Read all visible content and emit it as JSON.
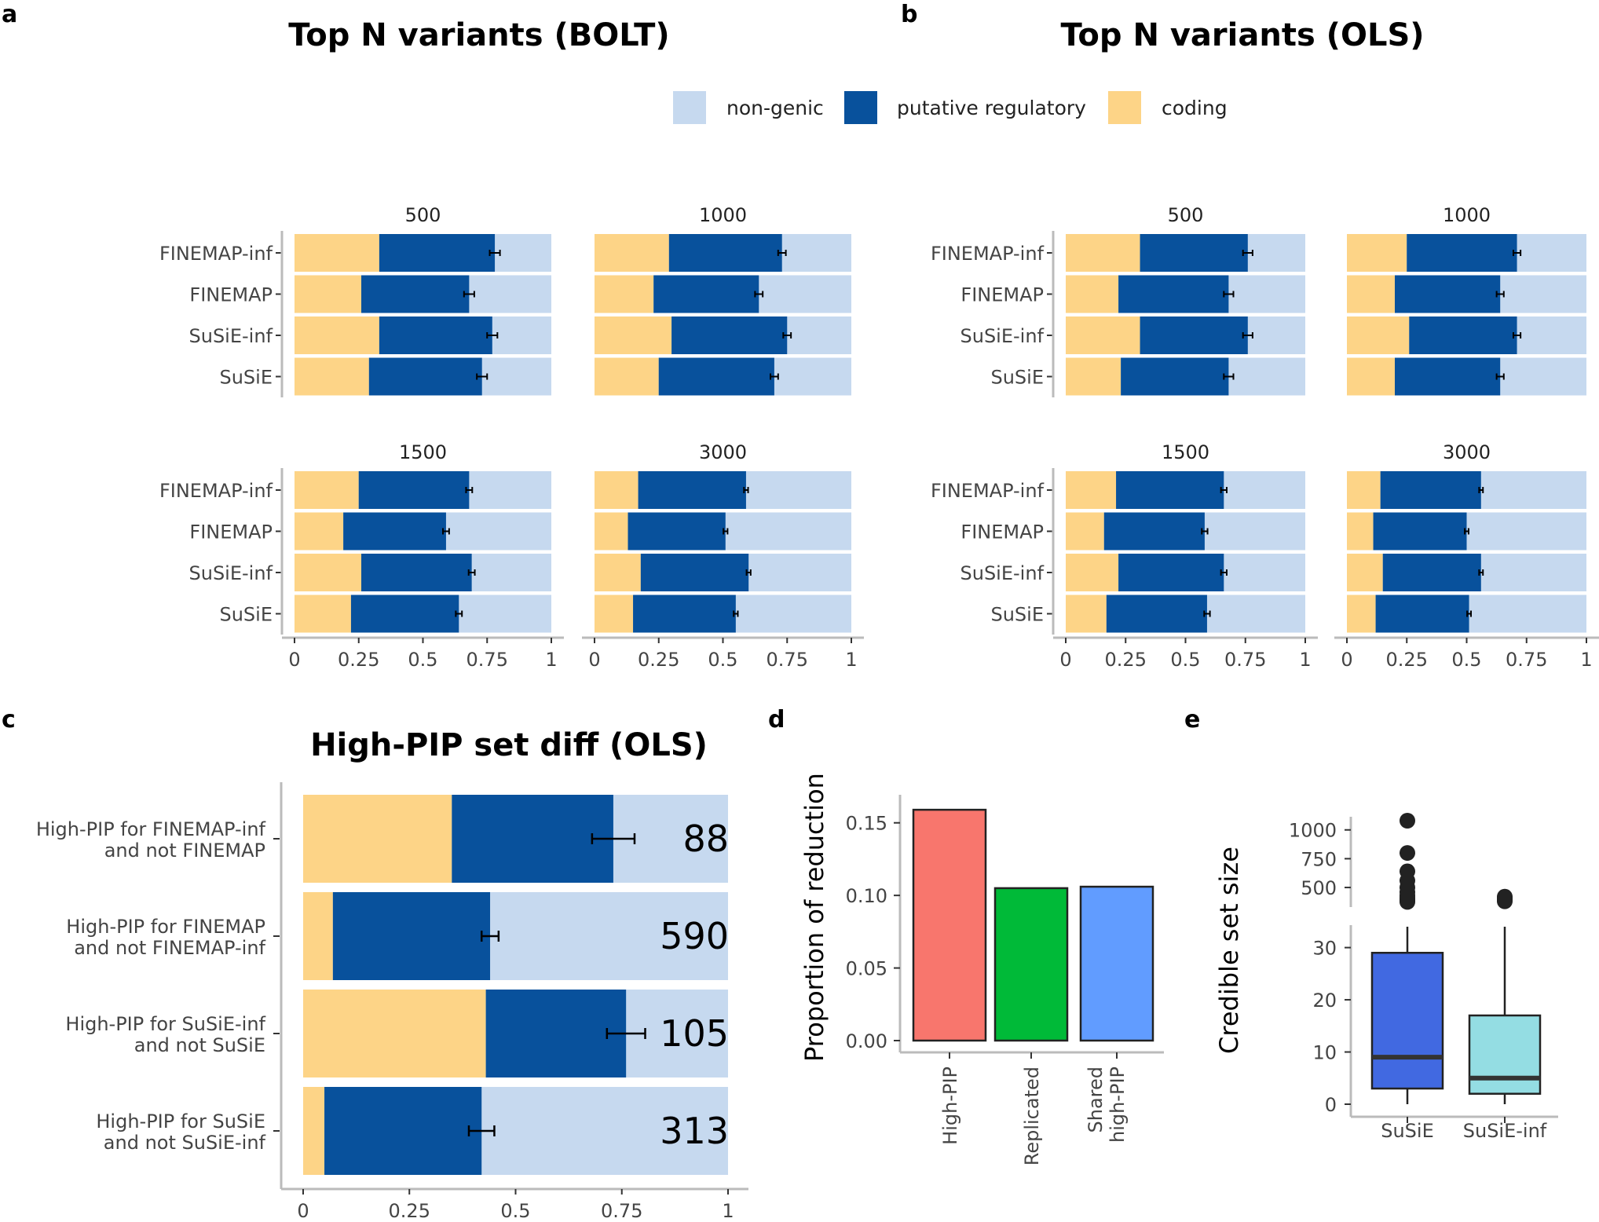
{
  "colors": {
    "non_genic": "#c6d9ef",
    "regulatory": "#08519c",
    "coding": "#fdd487",
    "high_pip": "#f8766d",
    "replicated": "#00ba38",
    "shared_high_pip": "#619cff",
    "susie_box": "#4169e1",
    "susie_inf_box": "#94dde3",
    "axis": "#bbbbbb",
    "tick_text": "#444444",
    "text": "#000000"
  },
  "legend": {
    "items": [
      {
        "key": "non_genic",
        "label": "non-genic"
      },
      {
        "key": "regulatory",
        "label": "putative regulatory"
      },
      {
        "key": "coding",
        "label": "coding"
      }
    ]
  },
  "chart_data": [
    {
      "panel": "a",
      "type": "bar",
      "stacked": true,
      "orientation": "horizontal",
      "title": "Top N variants (BOLT)",
      "xlim": [
        0,
        1
      ],
      "x_ticks": [
        "0",
        "0.25",
        "0.5",
        "0.75",
        "1"
      ],
      "categories": [
        "FINEMAP-inf",
        "FINEMAP",
        "SuSiE-inf",
        "SuSiE"
      ],
      "facets": [
        {
          "label": "500",
          "coding": [
            0.33,
            0.26,
            0.33,
            0.29
          ],
          "regulatory": [
            0.45,
            0.42,
            0.44,
            0.44
          ],
          "error": [
            0.02,
            0.02,
            0.02,
            0.02
          ]
        },
        {
          "label": "1000",
          "coding": [
            0.29,
            0.23,
            0.3,
            0.25
          ],
          "regulatory": [
            0.44,
            0.41,
            0.45,
            0.45
          ],
          "error": [
            0.015,
            0.015,
            0.015,
            0.015
          ]
        },
        {
          "label": "1500",
          "coding": [
            0.25,
            0.19,
            0.26,
            0.22
          ],
          "regulatory": [
            0.43,
            0.4,
            0.43,
            0.42
          ],
          "error": [
            0.012,
            0.012,
            0.012,
            0.012
          ]
        },
        {
          "label": "3000",
          "coding": [
            0.17,
            0.13,
            0.18,
            0.15
          ],
          "regulatory": [
            0.42,
            0.38,
            0.42,
            0.4
          ],
          "error": [
            0.008,
            0.008,
            0.008,
            0.008
          ]
        }
      ]
    },
    {
      "panel": "b",
      "type": "bar",
      "stacked": true,
      "orientation": "horizontal",
      "title": "Top N variants (OLS)",
      "xlim": [
        0,
        1
      ],
      "x_ticks": [
        "0",
        "0.25",
        "0.5",
        "0.75",
        "1"
      ],
      "categories": [
        "FINEMAP-inf",
        "FINEMAP",
        "SuSiE-inf",
        "SuSiE"
      ],
      "facets": [
        {
          "label": "500",
          "coding": [
            0.31,
            0.22,
            0.31,
            0.23
          ],
          "regulatory": [
            0.45,
            0.46,
            0.45,
            0.45
          ],
          "error": [
            0.02,
            0.02,
            0.02,
            0.02
          ]
        },
        {
          "label": "1000",
          "coding": [
            0.25,
            0.2,
            0.26,
            0.2
          ],
          "regulatory": [
            0.46,
            0.44,
            0.45,
            0.44
          ],
          "error": [
            0.015,
            0.015,
            0.015,
            0.015
          ]
        },
        {
          "label": "1500",
          "coding": [
            0.21,
            0.16,
            0.22,
            0.17
          ],
          "regulatory": [
            0.45,
            0.42,
            0.44,
            0.42
          ],
          "error": [
            0.012,
            0.012,
            0.012,
            0.012
          ]
        },
        {
          "label": "3000",
          "coding": [
            0.14,
            0.11,
            0.15,
            0.12
          ],
          "regulatory": [
            0.42,
            0.39,
            0.41,
            0.39
          ],
          "error": [
            0.008,
            0.008,
            0.008,
            0.008
          ]
        }
      ]
    },
    {
      "panel": "c",
      "type": "bar",
      "stacked": true,
      "orientation": "horizontal",
      "title": "High-PIP set diff (OLS)",
      "xlim": [
        0,
        1
      ],
      "x_ticks": [
        "0",
        "0.25",
        "0.5",
        "0.75",
        "1"
      ],
      "categories": [
        [
          "High-PIP for FINEMAP-inf",
          "and not FINEMAP"
        ],
        [
          "High-PIP for FINEMAP",
          "and not FINEMAP-inf"
        ],
        [
          "High-PIP for SuSiE-inf",
          "and not SuSiE"
        ],
        [
          "High-PIP for SuSiE",
          "and not SuSiE-inf"
        ]
      ],
      "coding": [
        0.35,
        0.07,
        0.43,
        0.05
      ],
      "regulatory": [
        0.38,
        0.37,
        0.33,
        0.37
      ],
      "error": [
        0.05,
        0.02,
        0.045,
        0.03
      ],
      "counts": [
        "88",
        "590",
        "105",
        "313"
      ]
    },
    {
      "panel": "d",
      "type": "bar",
      "ylabel": "Proportion of reduction",
      "ylim": [
        0,
        0.165
      ],
      "y_ticks": [
        "0.00",
        "0.05",
        "0.10",
        "0.15"
      ],
      "y_tick_values": [
        0,
        0.05,
        0.1,
        0.15
      ],
      "categories": [
        [
          "High-PIP"
        ],
        [
          "Replicated"
        ],
        [
          "Shared",
          "high-PIP"
        ]
      ],
      "color_keys": [
        "high_pip",
        "replicated",
        "shared_high_pip"
      ],
      "values": [
        0.159,
        0.105,
        0.106
      ]
    },
    {
      "panel": "e",
      "type": "box",
      "ylabel": "Credible set size",
      "categories": [
        "SuSiE",
        "SuSiE-inf"
      ],
      "color_keys": [
        "susie_box",
        "susie_inf_box"
      ],
      "lower_ylim": [
        0,
        34
      ],
      "lower_ticks": [
        "0",
        "10",
        "20",
        "30"
      ],
      "lower_tick_values": [
        0,
        10,
        20,
        30
      ],
      "upper_ylim": [
        330,
        1080
      ],
      "upper_ticks": [
        "500",
        "750",
        "1000"
      ],
      "upper_tick_values": [
        500,
        750,
        1000
      ],
      "boxes": [
        {
          "q1": 3,
          "median": 9,
          "q3": 29,
          "whisker_low": 0,
          "whisker_high": 34,
          "outliers": [
            1080,
            800,
            640,
            560,
            500,
            460,
            430,
            410,
            395,
            385,
            375
          ]
        },
        {
          "q1": 2,
          "median": 5,
          "q3": 17,
          "whisker_low": 0,
          "whisker_high": 34,
          "outliers": [
            420,
            405,
            392,
            380
          ]
        }
      ]
    }
  ],
  "panel_labels": [
    "a",
    "b",
    "c",
    "d",
    "e"
  ]
}
